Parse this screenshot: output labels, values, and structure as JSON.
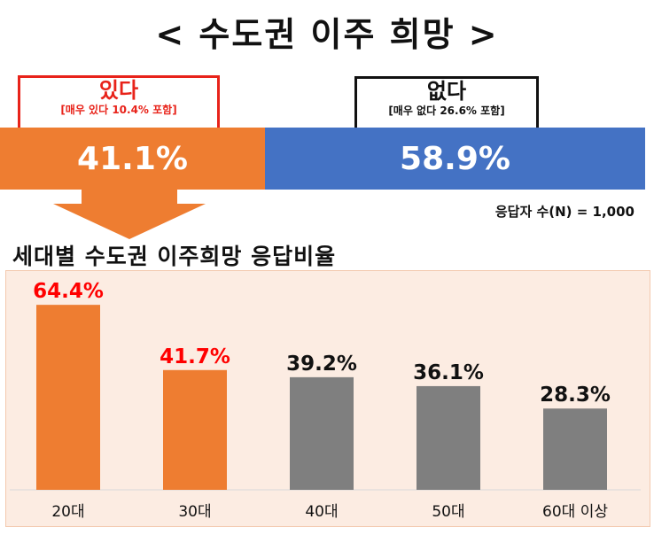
{
  "title": "< 수도권 이주 희망 >",
  "summary": {
    "yes": {
      "label": "있다",
      "sub": "[매우 있다 10.4% 포함]",
      "value_text": "41.1%",
      "value": 41.1
    },
    "no": {
      "label": "없다",
      "sub": "[매우 없다 26.6% 포함]",
      "value_text": "58.9%",
      "value": 58.9
    },
    "respondents": "응답자 수(N) = 1,000"
  },
  "colors": {
    "orange": "#ee7d31",
    "blue": "#4472c4",
    "gray": "#7f7f7f",
    "red": "#ff0000"
  },
  "chart_data": {
    "type": "bar",
    "title": "세대별 수도권 이주희망 응답비율",
    "categories": [
      "20대",
      "30대",
      "40대",
      "50대",
      "60대 이상"
    ],
    "values": [
      64.4,
      41.7,
      39.2,
      36.1,
      28.3
    ],
    "labels": [
      "64.4%",
      "41.7%",
      "39.2%",
      "36.1%",
      "28.3%"
    ],
    "bar_colors": [
      "#ee7d31",
      "#ee7d31",
      "#7f7f7f",
      "#7f7f7f",
      "#7f7f7f"
    ],
    "label_colors": [
      "#ff0000",
      "#ff0000",
      "#111111",
      "#111111",
      "#111111"
    ],
    "xlabel": "",
    "ylabel": "",
    "ylim": [
      0,
      70
    ]
  }
}
